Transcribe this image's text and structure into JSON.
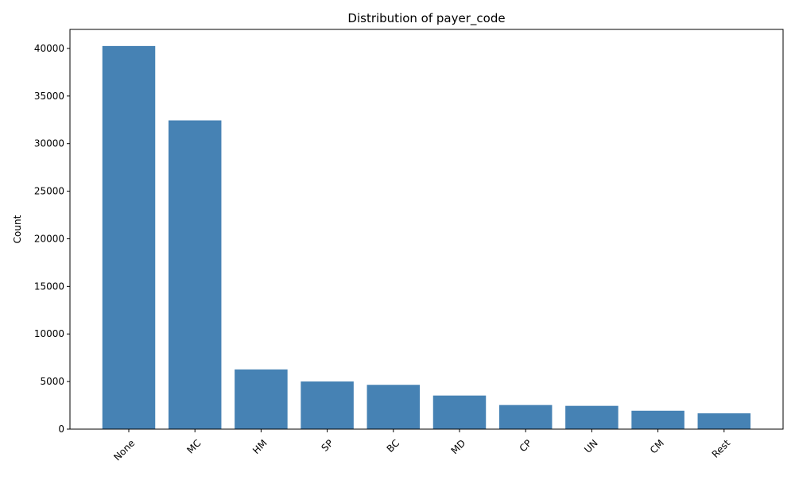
{
  "chart_data": {
    "type": "bar",
    "title": "Distribution of payer_code",
    "xlabel": "",
    "ylabel": "Count",
    "categories": [
      "None",
      "MC",
      "HM",
      "SP",
      "BC",
      "MD",
      "CP",
      "UN",
      "CM",
      "Rest"
    ],
    "values": [
      40256,
      32439,
      6274,
      5007,
      4655,
      3532,
      2533,
      2448,
      1937,
      1661
    ],
    "ylim": [
      0,
      42000
    ],
    "yticks": [
      0,
      5000,
      10000,
      15000,
      20000,
      25000,
      30000,
      35000,
      40000
    ],
    "ytick_labels": [
      "0",
      "5000",
      "10000",
      "15000",
      "20000",
      "25000",
      "30000",
      "35000",
      "40000"
    ],
    "bar_color": "#4682b4",
    "grid": false,
    "legend": "none"
  }
}
